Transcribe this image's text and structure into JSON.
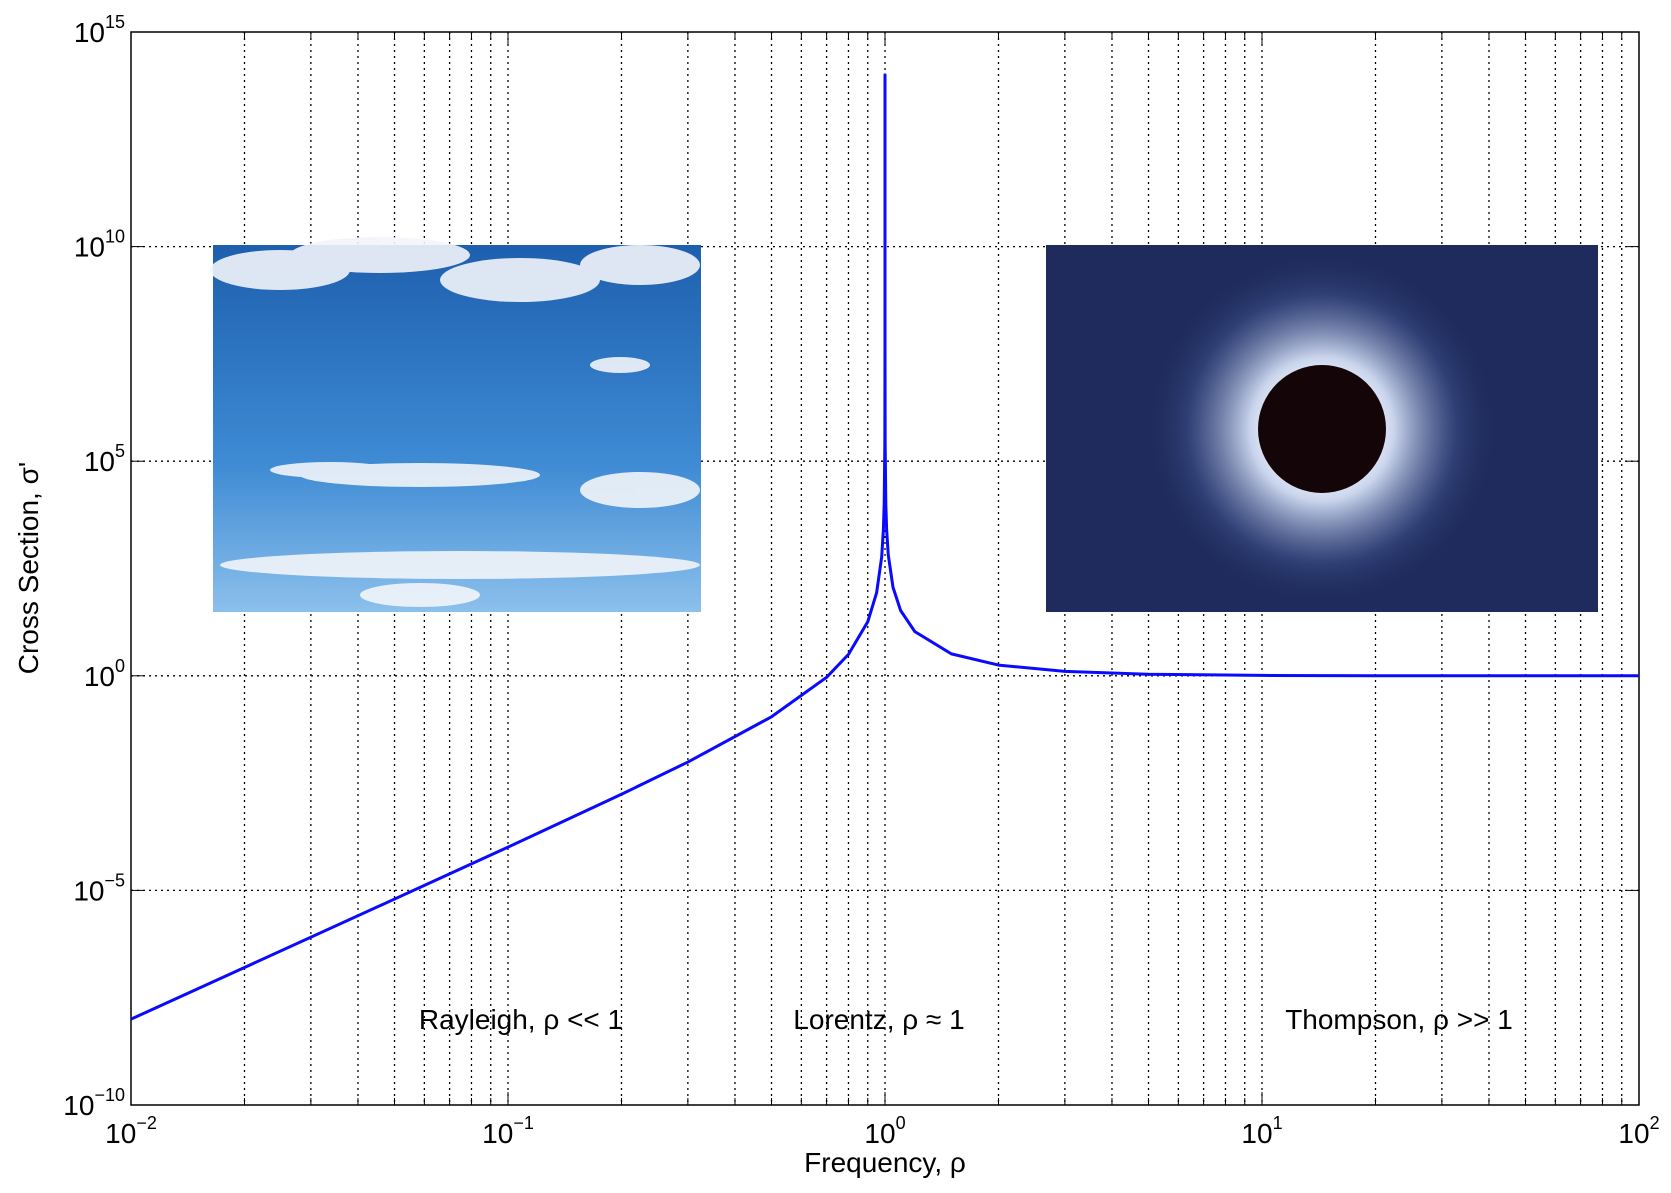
{
  "chart_data": {
    "type": "line",
    "x_label": "Frequency, ρ",
    "y_label": "Cross Section, σ'",
    "x_scale": "log",
    "y_scale": "log",
    "grid": true,
    "x_minor_grid": true,
    "color": "#0a0aff",
    "x": [
      0.01,
      0.02,
      0.05,
      0.1,
      0.2,
      0.3,
      0.5,
      0.7,
      0.8,
      0.9,
      0.95,
      0.98,
      0.99,
      0.995,
      0.999,
      0.9999,
      0.99999,
      0.999999,
      0.99999995,
      1.000001,
      1.00001,
      1.0001,
      1.001,
      1.005,
      1.01,
      1.02,
      1.05,
      1.1,
      1.2,
      1.5,
      2,
      3,
      5,
      10,
      20,
      50,
      100
    ],
    "values": [
      1.0002e-08,
      1.601e-07,
      6.28e-06,
      0.00010203,
      0.001736,
      0.009781,
      0.1111,
      0.9231,
      3.16,
      18.17,
      85.68,
      588.2,
      2426,
      9851,
      249300.0,
      25000000.0,
      2500000000.0,
      250000000000.0,
      100000000000000.0,
      250000000000.0,
      2500000000.0,
      25000000.0,
      250800.0,
      10151,
      2576,
      663.2,
      115.7,
      33.2,
      10.71,
      3.24,
      1.778,
      1.266,
      1.085,
      1.0203,
      1.005,
      1.0008,
      1.0002
    ],
    "xlim": [
      0.01,
      100
    ],
    "ylim": [
      1e-10,
      1000000000000000.0
    ],
    "xticks": [
      {
        "value": 0.01,
        "label": "10",
        "exp": "−2"
      },
      {
        "value": 0.1,
        "label": "10",
        "exp": "−1"
      },
      {
        "value": 1,
        "label": "10",
        "exp": "0"
      },
      {
        "value": 10,
        "label": "10",
        "exp": "1"
      },
      {
        "value": 100,
        "label": "10",
        "exp": "2"
      }
    ],
    "yticks": [
      {
        "value": 1e-10,
        "label": "10",
        "exp": "−10"
      },
      {
        "value": 1e-05,
        "label": "10",
        "exp": "−5"
      },
      {
        "value": 1,
        "label": "10",
        "exp": "0"
      },
      {
        "value": 100000.0,
        "label": "10",
        "exp": "5"
      },
      {
        "value": 10000000000.0,
        "label": "10",
        "exp": "10"
      },
      {
        "value": 1000000000000000.0,
        "label": "10",
        "exp": "15"
      }
    ],
    "annotations": [
      "Rayleigh, ρ << 1",
      "Lorentz, ρ ≈ 1",
      "Thompson, ρ >> 1"
    ]
  }
}
